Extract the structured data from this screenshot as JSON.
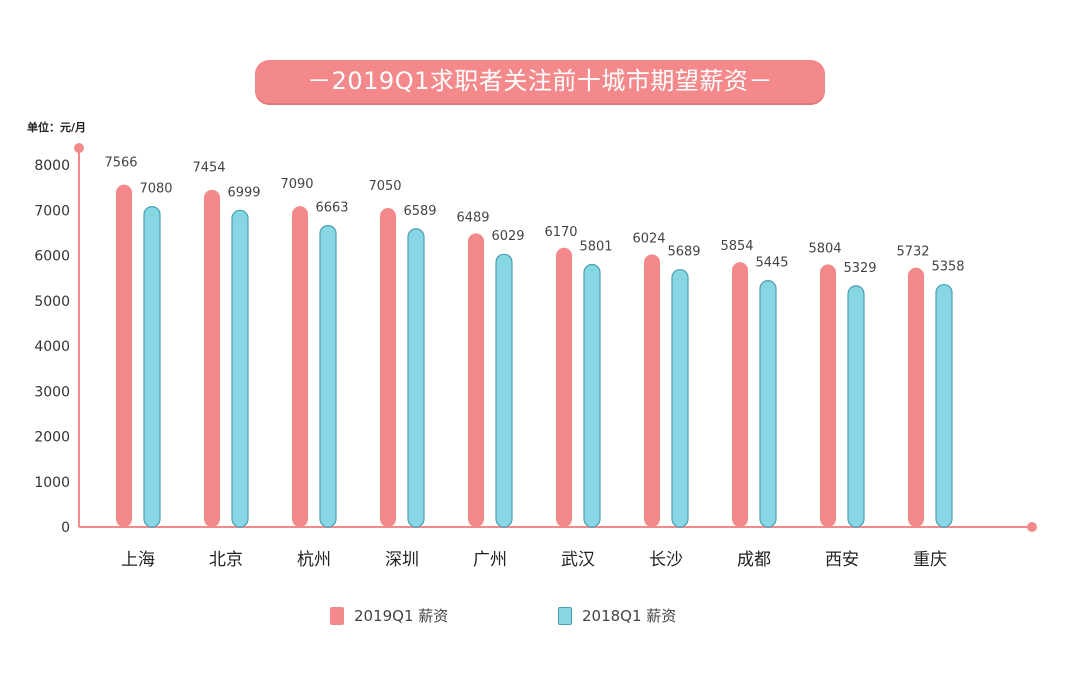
{
  "chart_data": {
    "type": "bar",
    "title": "－2019Q1求职者关注前十城市期望薪资－",
    "ylabel": "单位：元/月",
    "xlabel": "",
    "ylim": [
      0,
      8000
    ],
    "yticks": [
      0,
      1000,
      2000,
      3000,
      4000,
      5000,
      6000,
      7000,
      8000
    ],
    "categories": [
      "上海",
      "北京",
      "杭州",
      "深圳",
      "广州",
      "武汉",
      "长沙",
      "成都",
      "西安",
      "重庆"
    ],
    "series": [
      {
        "name": "2019Q1  薪资",
        "color": "#f3898a",
        "values": [
          7566,
          7454,
          7090,
          7050,
          6489,
          6170,
          6024,
          5854,
          5804,
          5732
        ]
      },
      {
        "name": "2018Q1  薪资",
        "color": "#86d6e4",
        "values": [
          7080,
          6999,
          6663,
          6589,
          6029,
          5801,
          5689,
          5445,
          5329,
          5358
        ]
      }
    ],
    "grid": false,
    "legend": "bottom-center"
  },
  "legend": {
    "item_2019": "2019Q1  薪资",
    "item_2018": "2018Q1  薪资"
  }
}
